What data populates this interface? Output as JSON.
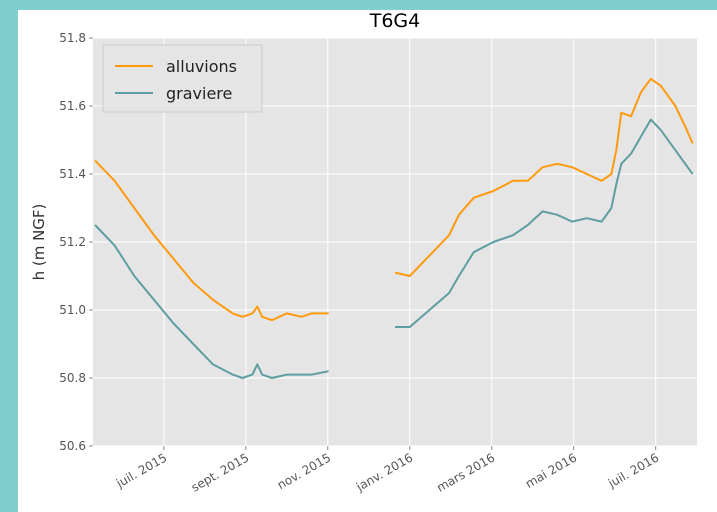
{
  "chart_data": {
    "type": "line",
    "title": "T6G4",
    "y_label": "h (m NGF)",
    "x": [
      2015.36,
      2015.4,
      2015.44,
      2015.48,
      2015.52,
      2015.56,
      2015.6,
      2015.64,
      2015.66,
      2015.68,
      2015.69,
      2015.7,
      2015.72,
      2015.75,
      2015.78,
      2015.8,
      2015.835,
      2015.9,
      2015.97,
      2016.0,
      2016.04,
      2016.08,
      2016.1,
      2016.13,
      2016.17,
      2016.21,
      2016.24,
      2016.27,
      2016.3,
      2016.33,
      2016.36,
      2016.39,
      2016.41,
      2016.42,
      2016.43,
      2016.45,
      2016.47,
      2016.49,
      2016.51,
      2016.54,
      2016.56,
      2016.575
    ],
    "series": [
      {
        "name": "alluvions",
        "color": "#ff9a0e",
        "values": [
          51.44,
          51.38,
          51.3,
          51.22,
          51.15,
          51.08,
          51.03,
          50.99,
          50.98,
          50.99,
          51.01,
          50.98,
          50.97,
          50.99,
          50.98,
          50.99,
          50.99,
          null,
          51.11,
          51.1,
          51.16,
          51.22,
          51.28,
          51.33,
          51.35,
          51.38,
          51.38,
          51.42,
          51.43,
          51.42,
          51.4,
          51.38,
          51.4,
          51.47,
          51.58,
          51.57,
          51.64,
          51.68,
          51.66,
          51.6,
          51.54,
          51.49
        ]
      },
      {
        "name": "graviere",
        "color": "#5f9ea0",
        "values": [
          51.25,
          51.19,
          51.1,
          51.03,
          50.96,
          50.9,
          50.84,
          50.81,
          50.8,
          50.81,
          50.84,
          50.81,
          50.8,
          50.81,
          50.81,
          50.81,
          50.82,
          null,
          50.95,
          50.95,
          51.0,
          51.05,
          51.1,
          51.17,
          51.2,
          51.22,
          51.25,
          51.29,
          51.28,
          51.26,
          51.27,
          51.26,
          51.3,
          51.37,
          51.43,
          51.46,
          51.51,
          51.56,
          51.53,
          51.47,
          51.43,
          51.4
        ]
      }
    ],
    "xlim": [
      2015.356,
      2016.584
    ],
    "xticks": [
      {
        "value": 2015.5,
        "label": "juil. 2015"
      },
      {
        "value": 2015.6667,
        "label": "sept. 2015"
      },
      {
        "value": 2015.8333,
        "label": "nov. 2015"
      },
      {
        "value": 2016.0,
        "label": "janv. 2016"
      },
      {
        "value": 2016.1667,
        "label": "mars 2016"
      },
      {
        "value": 2016.3333,
        "label": "mai 2016"
      },
      {
        "value": 2016.5,
        "label": "juil. 2016"
      }
    ],
    "ylim": [
      50.6,
      51.8
    ],
    "yticks": [
      {
        "value": 50.6,
        "label": "50.6"
      },
      {
        "value": 50.8,
        "label": "50.8"
      },
      {
        "value": 51.0,
        "label": "51.0"
      },
      {
        "value": 51.2,
        "label": "51.2"
      },
      {
        "value": 51.4,
        "label": "51.4"
      },
      {
        "value": 51.6,
        "label": "51.6"
      },
      {
        "value": 51.8,
        "label": "51.8"
      }
    ],
    "grid": true,
    "legend": "upper left"
  }
}
